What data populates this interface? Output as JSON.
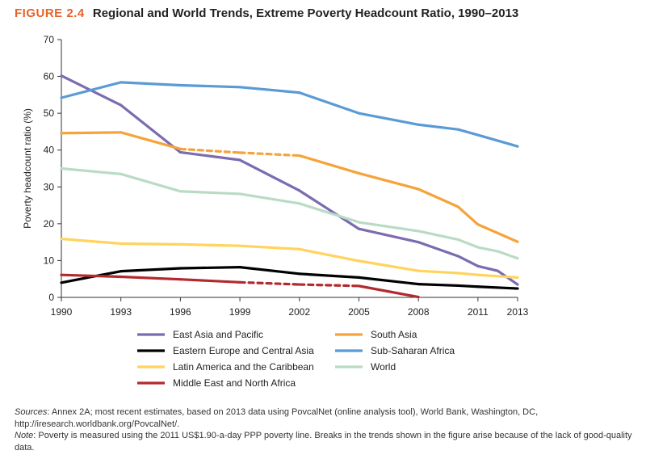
{
  "figure": {
    "number": "FIGURE 2.4",
    "title": "Regional and World Trends, Extreme Poverty Headcount Ratio, 1990–2013"
  },
  "notes": {
    "sources_label": "Sources",
    "sources_text": ": Annex 2A; most recent estimates, based on 2013 data using PovcalNet (online analysis tool), World Bank, Washington, DC, http://iresearch.worldbank.org/PovcalNet/.",
    "note_label": "Note",
    "note_text": ": Poverty is measured using the 2011 US$1.90-a-day PPP poverty line. Breaks in the trends shown in the figure arise because of the lack of good-quality data."
  },
  "chart_data": {
    "type": "line",
    "title": "Regional and World Trends, Extreme Poverty Headcount Ratio, 1990–2013",
    "xlabel": "",
    "ylabel": "Poverty headcount ratio (%)",
    "xlim": [
      1990,
      2013
    ],
    "ylim": [
      0,
      70
    ],
    "x_ticks": [
      1990,
      1993,
      1996,
      1999,
      2002,
      2005,
      2008,
      2011,
      2013
    ],
    "y_ticks": [
      0,
      10,
      20,
      30,
      40,
      50,
      60,
      70
    ],
    "grid": false,
    "legend": "bottom",
    "series": [
      {
        "name": "East Asia and Pacific",
        "color": "#7b6bb0",
        "x": [
          1990,
          1993,
          1996,
          1999,
          2002,
          2005,
          2008,
          2010,
          2011,
          2012,
          2013
        ],
        "y": [
          60.2,
          52.2,
          39.4,
          37.3,
          29.0,
          18.6,
          15.0,
          11.2,
          8.5,
          7.2,
          3.5
        ],
        "dashed_segments": []
      },
      {
        "name": "South Asia",
        "color": "#f5a33a",
        "x": [
          1990,
          1993,
          1996,
          1999,
          2002,
          2005,
          2008,
          2010,
          2011,
          2013
        ],
        "y": [
          44.6,
          44.8,
          40.3,
          39.3,
          38.5,
          33.7,
          29.4,
          24.6,
          19.8,
          15.1
        ],
        "dashed_segments": [
          [
            1996,
            2002
          ]
        ]
      },
      {
        "name": "Eastern Europe and Central Asia",
        "color": "#000000",
        "x": [
          1990,
          1993,
          1996,
          1999,
          2002,
          2005,
          2008,
          2010,
          2011,
          2013
        ],
        "y": [
          4.0,
          7.1,
          7.9,
          8.2,
          6.4,
          5.4,
          3.6,
          3.2,
          2.9,
          2.4
        ],
        "dashed_segments": []
      },
      {
        "name": "Sub-Saharan Africa",
        "color": "#5b9bd5",
        "x": [
          1990,
          1993,
          1996,
          1999,
          2002,
          2005,
          2008,
          2010,
          2011,
          2013
        ],
        "y": [
          54.2,
          58.4,
          57.6,
          57.1,
          55.6,
          50.0,
          46.9,
          45.6,
          44.1,
          41.0
        ],
        "dashed_segments": []
      },
      {
        "name": "Latin America and the Caribbean",
        "color": "#ffd35c",
        "x": [
          1990,
          1993,
          1996,
          1999,
          2002,
          2005,
          2008,
          2010,
          2011,
          2013
        ],
        "y": [
          15.9,
          14.6,
          14.4,
          14.0,
          13.1,
          9.9,
          7.2,
          6.6,
          6.1,
          5.4
        ],
        "dashed_segments": []
      },
      {
        "name": "World",
        "color": "#b9dbc5",
        "x": [
          1990,
          1993,
          1996,
          1999,
          2002,
          2005,
          2008,
          2010,
          2011,
          2012,
          2013
        ],
        "y": [
          35.0,
          33.5,
          28.8,
          28.1,
          25.5,
          20.4,
          18.0,
          15.7,
          13.6,
          12.5,
          10.6
        ],
        "dashed_segments": []
      },
      {
        "name": "Middle East and North Africa",
        "color": "#b22a2e",
        "x": [
          1990,
          1993,
          1996,
          1999,
          2002,
          2005,
          2008
        ],
        "y": [
          6.1,
          5.6,
          4.9,
          4.1,
          3.5,
          3.1,
          0.1
        ],
        "dashed_segments": [
          [
            1999,
            2005
          ]
        ]
      }
    ],
    "legend_order": [
      "East Asia and Pacific",
      "South Asia",
      "Eastern Europe and Central Asia",
      "Sub-Saharan Africa",
      "Latin America and the Caribbean",
      "World",
      "Middle East and North Africa"
    ]
  }
}
